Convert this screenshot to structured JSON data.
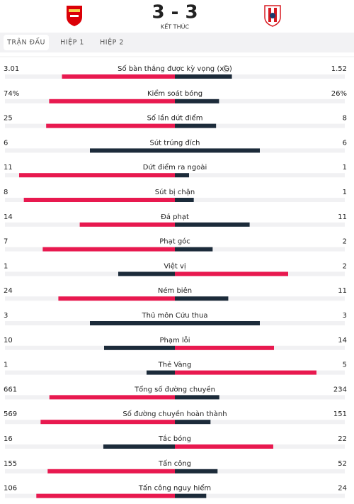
{
  "header": {
    "score": "3 - 3",
    "status": "KẾT THÚC"
  },
  "tabs": [
    "TRẬN ĐẤU",
    "HIỆP 1",
    "HIỆP 2"
  ],
  "stats": [
    {
      "label": "Số bàn thắng được kỳ vọng (xG)",
      "home": 3.01,
      "away": 1.52
    },
    {
      "label": "Kiểm soát bóng",
      "home": {
        "value": 74,
        "label": "74%"
      },
      "away": {
        "value": 26,
        "label": "26%"
      }
    },
    {
      "label": "Số lần dứt điểm",
      "home": 25,
      "away": 8
    },
    {
      "label": "Sút trúng đích",
      "home": 6,
      "away": 6
    },
    {
      "label": "Dứt điểm ra ngoài",
      "home": 11,
      "away": 1
    },
    {
      "label": "Sút bị chặn",
      "home": 8,
      "away": 1
    },
    {
      "label": "Đá phạt",
      "home": 14,
      "away": 11
    },
    {
      "label": "Phạt góc",
      "home": 7,
      "away": 2
    },
    {
      "label": "Việt vị",
      "home": 1,
      "away": 2
    },
    {
      "label": "Ném biên",
      "home": 24,
      "away": 11
    },
    {
      "label": "Thủ môn Cứu thua",
      "home": 3,
      "away": 3
    },
    {
      "label": "Phạm lỗi",
      "home": 10,
      "away": 14
    },
    {
      "label": "Thẻ Vàng",
      "home": 1,
      "away": 5
    },
    {
      "label": "Tổng số đường chuyền",
      "home": 661,
      "away": 234
    },
    {
      "label": "Số đường chuyền hoàn thành",
      "home": 569,
      "away": 151
    },
    {
      "label": "Tắc bóng",
      "home": 16,
      "away": 22
    },
    {
      "label": "Tấn công",
      "home": 155,
      "away": 52
    },
    {
      "label": "Tấn công nguy hiểm",
      "home": 106,
      "away": 24
    }
  ]
}
